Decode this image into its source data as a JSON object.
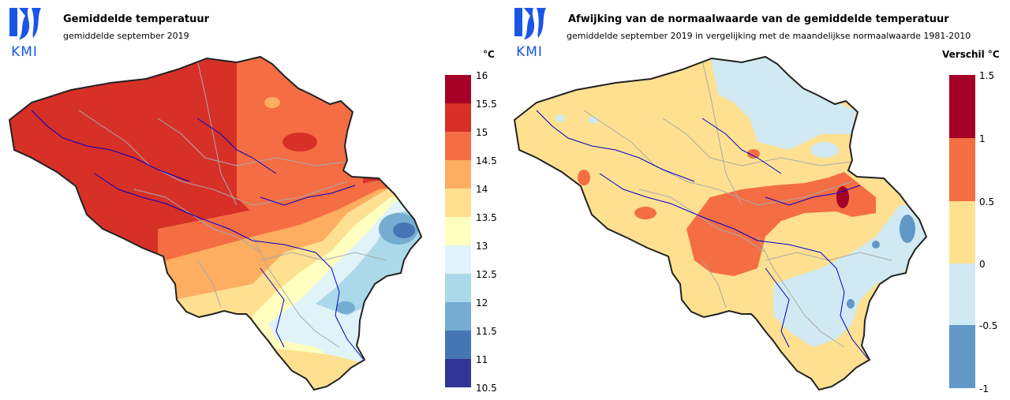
{
  "left": {
    "logo_text": "KMI",
    "title": "Gemiddelde temperatuur",
    "subtitle": "gemiddelde september 2019",
    "unit": "°C",
    "legend": {
      "ticks": [
        "16",
        "15.5",
        "15",
        "14.5",
        "14",
        "13.5",
        "13",
        "12.5",
        "12",
        "11.5",
        "11",
        "10.5"
      ],
      "colors": [
        "#a50026",
        "#d73027",
        "#f46d43",
        "#fdae61",
        "#fee090",
        "#ffffbf",
        "#e0f3f8",
        "#abd9e9",
        "#74add1",
        "#4575b4",
        "#313695"
      ]
    }
  },
  "right": {
    "logo_text": "KMI",
    "title": "Afwijking van de normaalwaarde van de gemiddelde temperatuur",
    "subtitle": "gemiddelde september 2019 in vergelijking met de maandelijkse normaalwaarde 1981-2010",
    "unit": "Verschil °C",
    "legend": {
      "ticks": [
        "1.5",
        "1",
        "0.5",
        "0",
        "-0.5",
        "-1"
      ],
      "colors": [
        "#a50026",
        "#f46d43",
        "#fee090",
        "#d1e9f2",
        "#6198c8"
      ]
    }
  },
  "colors": {
    "logo_blue": "#1a56e6",
    "border": "#222222",
    "province_border": "#aaaaaa",
    "river": "#0000cc"
  }
}
